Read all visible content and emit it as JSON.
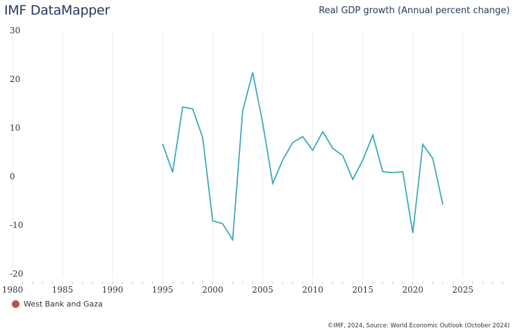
{
  "header": {
    "app_title": "IMF DataMapper",
    "chart_title": "Real GDP growth (Annual percent change)"
  },
  "legend": {
    "items": [
      {
        "label": "West Bank and Gaza",
        "color": "#c0504d"
      }
    ]
  },
  "footer": {
    "source": "©IMF, 2024, Source: World Economic Outlook (October 2024)"
  },
  "colors": {
    "line": "#3aaab9",
    "grid": "#ececec",
    "tick": "#cccccc"
  },
  "chart_data": {
    "type": "line",
    "title": "Real GDP growth (Annual percent change)",
    "xlabel": "",
    "ylabel": "",
    "xlim": [
      1980,
      2029
    ],
    "ylim": [
      -20,
      30
    ],
    "grid": true,
    "legend_position": "bottom-left",
    "y_ticks": [
      30,
      20,
      10,
      0,
      -10,
      -20
    ],
    "x_ticks": [
      1980,
      1985,
      1990,
      1995,
      2000,
      2005,
      2010,
      2015,
      2020,
      2025
    ],
    "series": [
      {
        "name": "West Bank and Gaza",
        "x": [
          1995,
          1996,
          1997,
          1998,
          1999,
          2000,
          2001,
          2002,
          2003,
          2004,
          2005,
          2006,
          2007,
          2008,
          2009,
          2010,
          2011,
          2012,
          2013,
          2014,
          2015,
          2016,
          2017,
          2018,
          2019,
          2020,
          2021,
          2022,
          2023
        ],
        "values": [
          6.7,
          0.9,
          14.3,
          13.9,
          8.0,
          -9.1,
          -9.7,
          -13.0,
          13.5,
          21.4,
          11.0,
          -1.4,
          3.4,
          7.0,
          8.2,
          5.4,
          9.2,
          5.8,
          4.3,
          -0.6,
          3.4,
          8.5,
          1.0,
          0.8,
          1.0,
          -11.6,
          6.6,
          3.7,
          -5.8
        ]
      }
    ]
  }
}
